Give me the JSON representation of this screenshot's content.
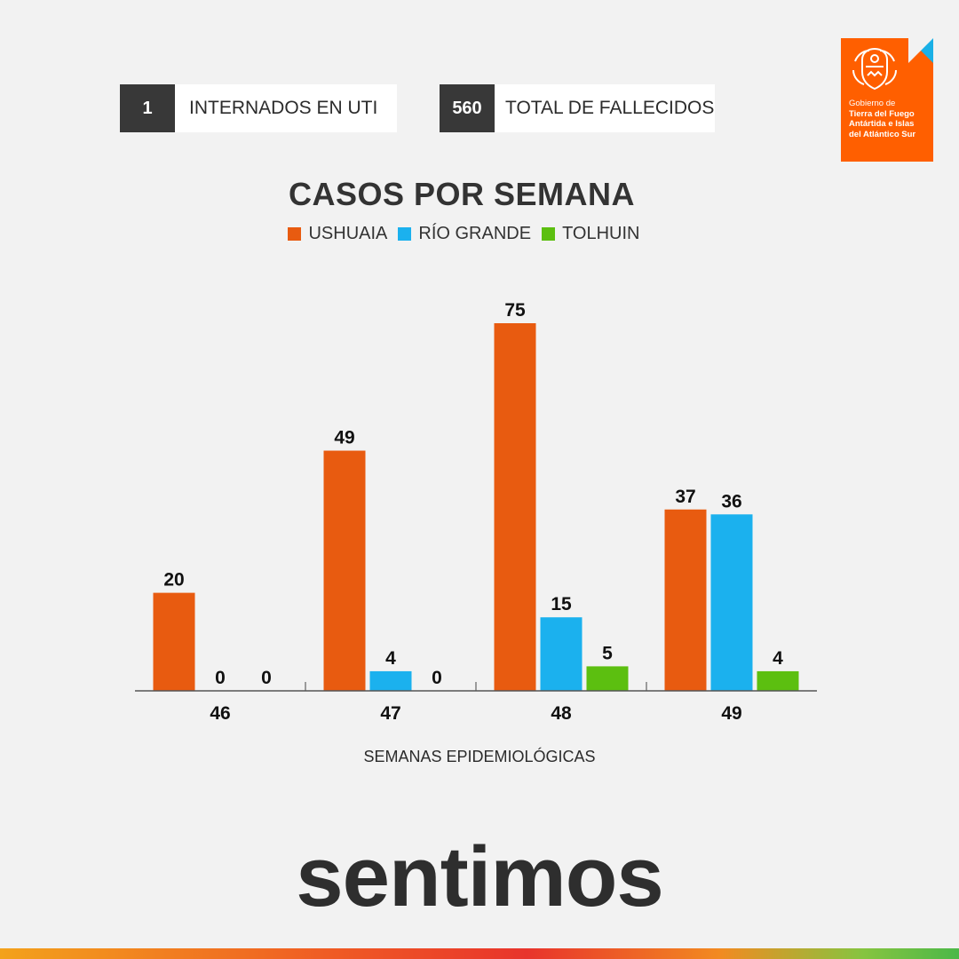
{
  "stats": [
    {
      "value": "1",
      "label": "INTERNADOS EN UTI"
    },
    {
      "value": "560",
      "label": "TOTAL DE FALLECIDOS"
    }
  ],
  "logo": {
    "line1": "Gobierno de",
    "line2": "Tierra del Fuego",
    "line3": "Antártida e Islas",
    "line4": "del Atlántico Sur"
  },
  "brand": {
    "text": "sentimos"
  },
  "colors": {
    "ushuaia": "#e85b10",
    "rio_grande": "#1bb1ee",
    "tolhuin": "#5cbf10",
    "logo": "#ff5f00"
  },
  "chart_data": {
    "type": "bar",
    "title": "CASOS POR SEMANA",
    "xlabel": "SEMANAS EPIDEMIOLÓGICAS",
    "ylabel": "",
    "categories": [
      "46",
      "47",
      "48",
      "49"
    ],
    "series": [
      {
        "name": "USHUAIA",
        "values": [
          20,
          49,
          75,
          37
        ],
        "color": "#e85b10"
      },
      {
        "name": "RÍO GRANDE",
        "values": [
          0,
          4,
          15,
          36
        ],
        "color": "#1bb1ee"
      },
      {
        "name": "TOLHUIN",
        "values": [
          0,
          0,
          5,
          4
        ],
        "color": "#5cbf10"
      }
    ],
    "ylim": [
      0,
      75
    ],
    "grid": false,
    "legend": "top-center",
    "data_labels": true
  }
}
